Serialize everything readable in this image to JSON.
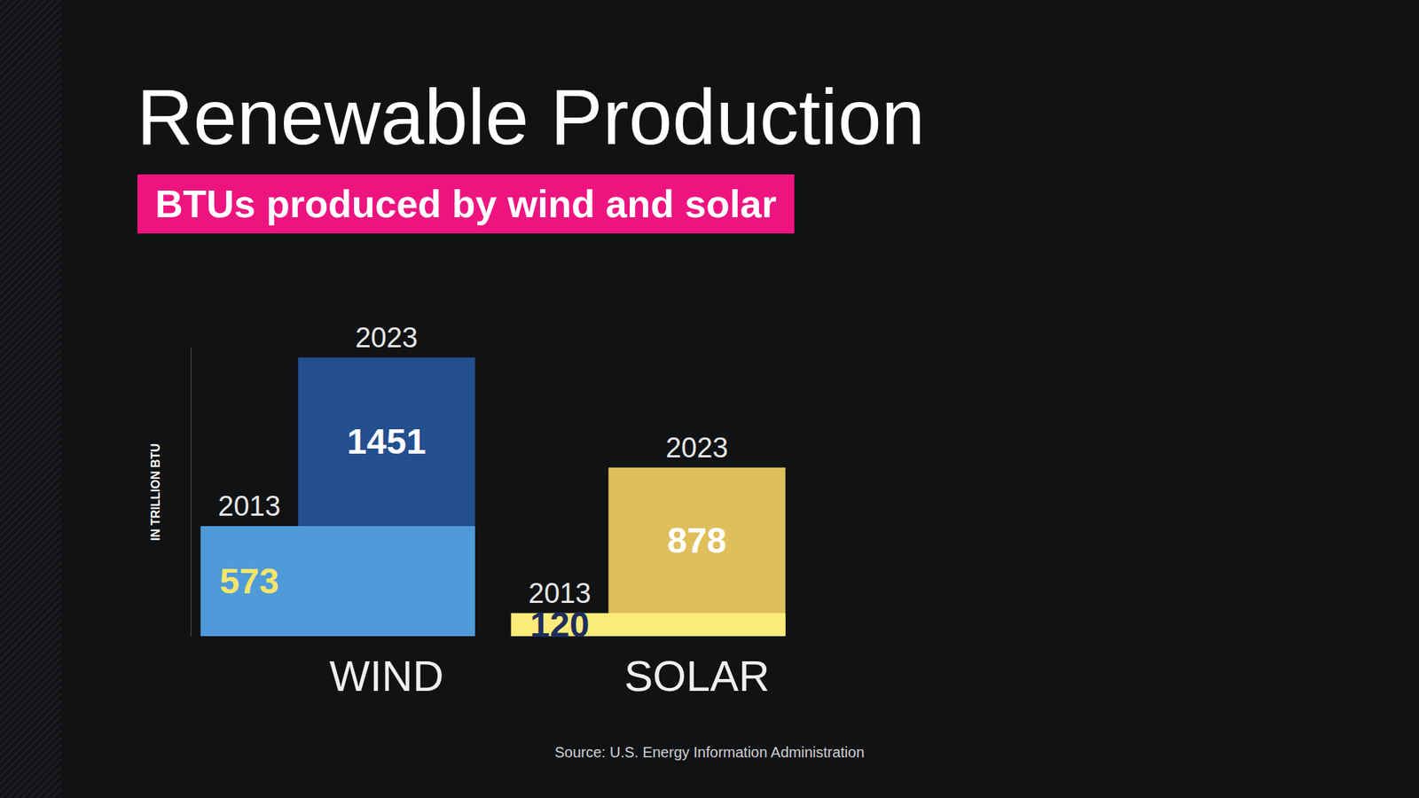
{
  "chart_data": {
    "type": "bar",
    "title": "Renewable Production",
    "subtitle": "BTUs produced by wind and solar",
    "y_label": "IN TRILLION BTU",
    "source": "Source: U.S. Energy Information Administration",
    "categories": [
      "WIND",
      "SOLAR"
    ],
    "series": [
      {
        "name": "2013",
        "values": [
          573,
          120
        ],
        "colors": [
          "#4f9bd9",
          "#fbec79"
        ],
        "label_colors": [
          "#f5e56b",
          "#1d2d5c"
        ]
      },
      {
        "name": "2023",
        "values": [
          1451,
          878
        ],
        "colors": [
          "#234f8e",
          "#dfbf5c"
        ],
        "label_colors": [
          "#ffffff",
          "#ffffff"
        ]
      }
    ],
    "ylim": [
      0,
      1500
    ],
    "grid": false,
    "data_labels": true,
    "tick_labels": "x"
  }
}
